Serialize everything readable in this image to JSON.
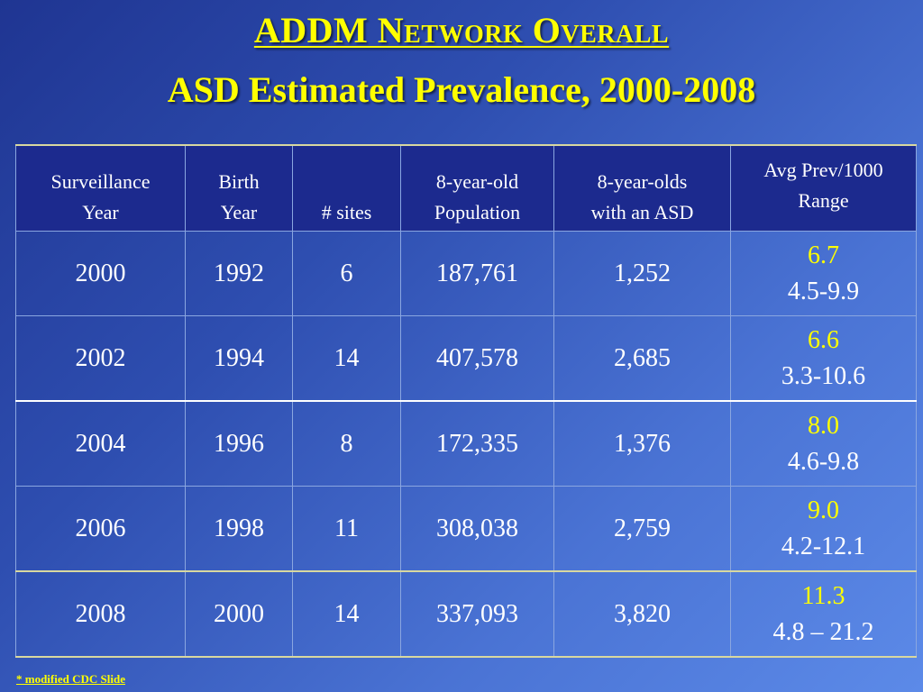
{
  "title": {
    "line1": "ADDM Network Overall",
    "line2": "ASD Estimated Prevalence, 2000-2008"
  },
  "table": {
    "headers": {
      "surveillance_year": [
        "Surveillance",
        "Year"
      ],
      "birth_year": [
        "Birth",
        "Year"
      ],
      "sites": "# sites",
      "population": [
        "8-year-old",
        "Population"
      ],
      "asd": [
        "8-year-olds",
        "with an ASD"
      ],
      "avg_prev": [
        "Avg Prev/1000",
        "Range"
      ]
    },
    "rows": [
      {
        "surveillance_year": "2000",
        "birth_year": "1992",
        "sites": "6",
        "population": "187,761",
        "asd": "1,252",
        "avg": "6.7",
        "range": "4.5-9.9"
      },
      {
        "surveillance_year": "2002",
        "birth_year": "1994",
        "sites": "14",
        "population": "407,578",
        "asd": "2,685",
        "avg": "6.6",
        "range": "3.3-10.6"
      },
      {
        "surveillance_year": "2004",
        "birth_year": "1996",
        "sites": "8",
        "population": "172,335",
        "asd": "1,376",
        "avg": "8.0",
        "range": "4.6-9.8"
      },
      {
        "surveillance_year": "2006",
        "birth_year": "1998",
        "sites": "11",
        "population": "308,038",
        "asd": "2,759",
        "avg": "9.0",
        "range": "4.2-12.1"
      },
      {
        "surveillance_year": "2008",
        "birth_year": "2000",
        "sites": "14",
        "population": "337,093",
        "asd": "3,820",
        "avg": "11.3",
        "range": "4.8 – 21.2"
      }
    ]
  },
  "footnote": "* modified CDC Slide",
  "colors": {
    "title": "#ffff00",
    "header_bg": "#1c2a8e",
    "avg_value": "#ffff00",
    "text": "#ffffff"
  }
}
